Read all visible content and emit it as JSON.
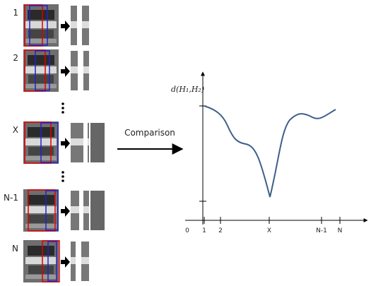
{
  "rows": [
    {
      "label": "1"
    },
    {
      "label": "2"
    },
    {
      "label": "X"
    },
    {
      "label": "N-1"
    },
    {
      "label": "N"
    }
  ],
  "comparison": "Comparison",
  "plot": {
    "y_label": "d(H₁,H₂)",
    "x_ticks": [
      "0",
      "1",
      "2",
      "X",
      "N-1",
      "N"
    ]
  }
}
